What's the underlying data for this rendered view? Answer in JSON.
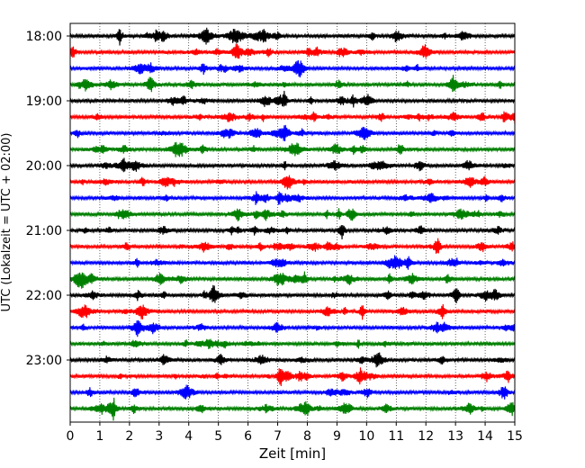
{
  "chart_data": {
    "type": "line",
    "title": "",
    "xlabel": "Zeit  [min]",
    "ylabel": "UTC (Lokalzeit = UTC + 02:00)",
    "xlim": [
      0,
      15
    ],
    "x_ticks": [
      "0",
      "1",
      "2",
      "3",
      "4",
      "5",
      "6",
      "7",
      "8",
      "9",
      "10",
      "11",
      "12",
      "13",
      "14",
      "15"
    ],
    "y_ticks": [
      "18:00",
      "19:00",
      "20:00",
      "21:00",
      "22:00",
      "23:00"
    ],
    "grid": "vertical-dotted",
    "trace_interval_min": 15,
    "trace_colors": [
      "#000000",
      "#ff0000",
      "#0000ff",
      "#008000"
    ],
    "traces": [
      {
        "start": "18:00",
        "color": "#000000"
      },
      {
        "start": "18:15",
        "color": "#ff0000"
      },
      {
        "start": "18:30",
        "color": "#0000ff"
      },
      {
        "start": "18:45",
        "color": "#008000"
      },
      {
        "start": "19:00",
        "color": "#000000"
      },
      {
        "start": "19:15",
        "color": "#ff0000"
      },
      {
        "start": "19:30",
        "color": "#0000ff"
      },
      {
        "start": "19:45",
        "color": "#008000"
      },
      {
        "start": "20:00",
        "color": "#000000"
      },
      {
        "start": "20:15",
        "color": "#ff0000"
      },
      {
        "start": "20:30",
        "color": "#0000ff"
      },
      {
        "start": "20:45",
        "color": "#008000"
      },
      {
        "start": "21:00",
        "color": "#000000"
      },
      {
        "start": "21:15",
        "color": "#ff0000"
      },
      {
        "start": "21:30",
        "color": "#0000ff"
      },
      {
        "start": "21:45",
        "color": "#008000"
      },
      {
        "start": "22:00",
        "color": "#000000"
      },
      {
        "start": "22:15",
        "color": "#ff0000"
      },
      {
        "start": "22:30",
        "color": "#0000ff"
      },
      {
        "start": "22:45",
        "color": "#008000"
      },
      {
        "start": "23:00",
        "color": "#000000"
      },
      {
        "start": "23:15",
        "color": "#ff0000"
      },
      {
        "start": "23:30",
        "color": "#0000ff"
      },
      {
        "start": "23:45",
        "color": "#008000"
      }
    ]
  }
}
